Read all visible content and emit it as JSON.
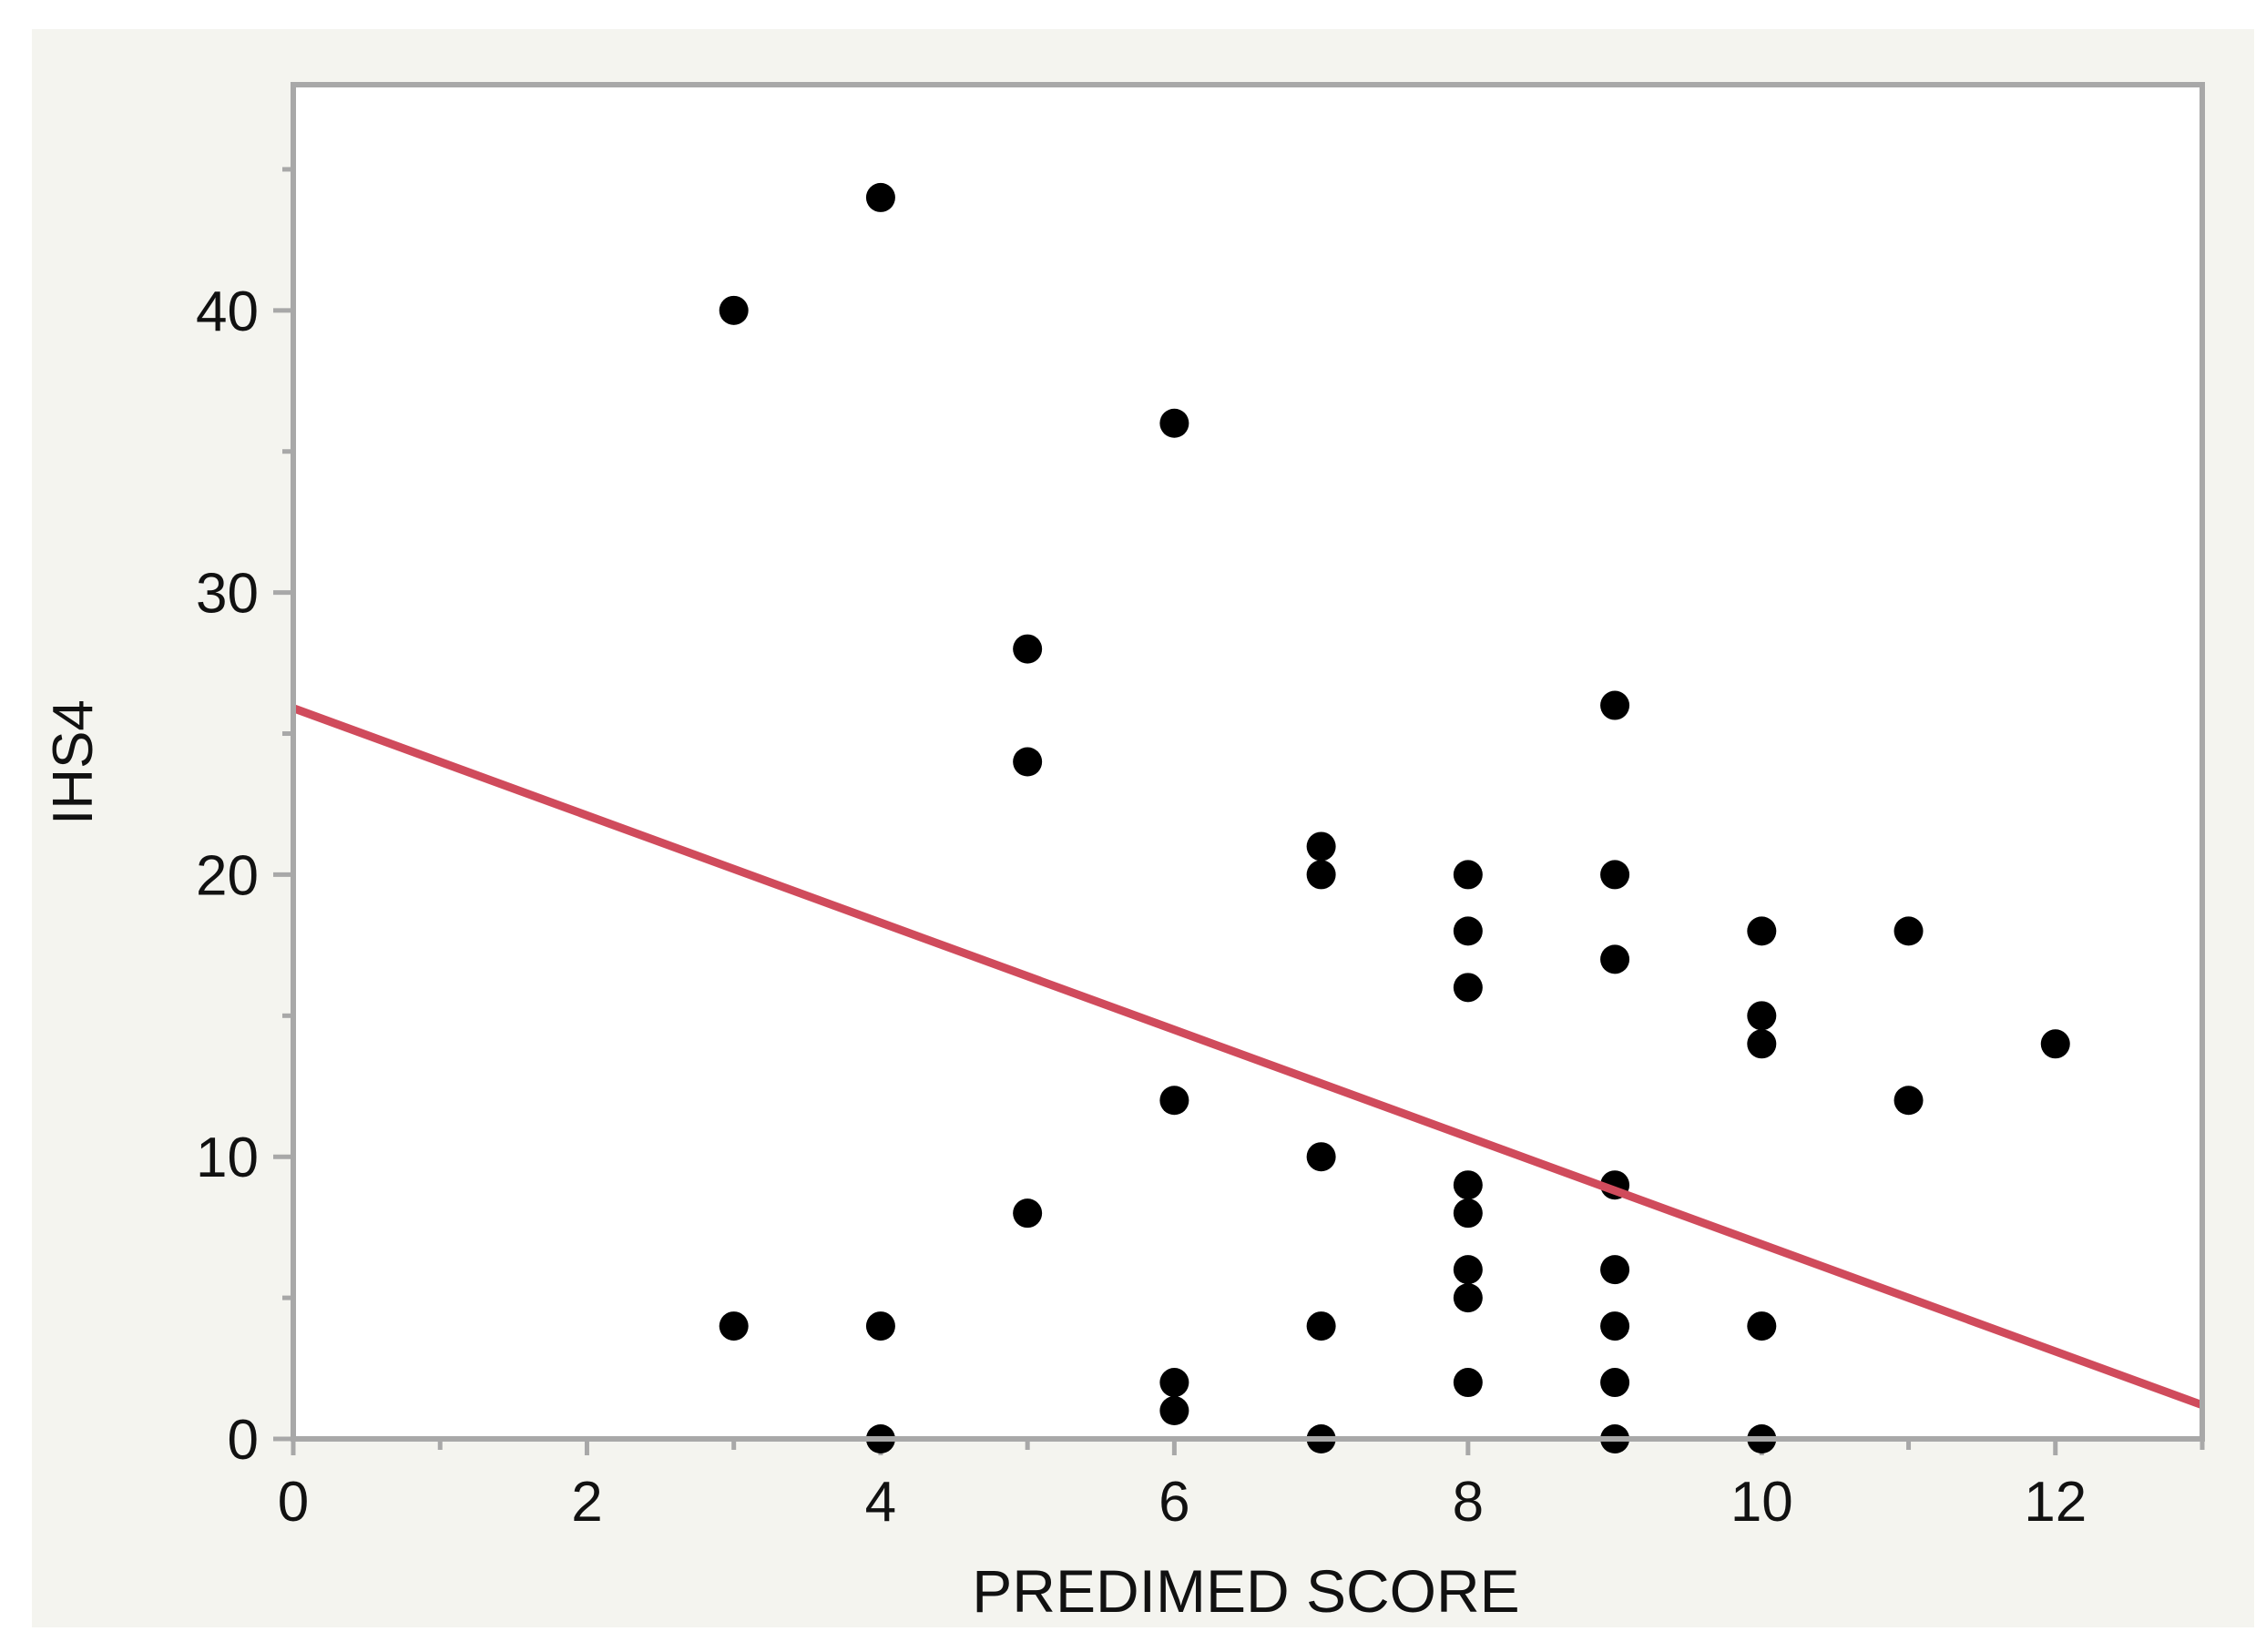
{
  "chart_data": {
    "type": "scatter",
    "xlabel": "PREDIMED SCORE",
    "ylabel": "IHS4",
    "xlim": [
      0,
      13
    ],
    "ylim": [
      0,
      48
    ],
    "x_ticks": [
      0,
      2,
      4,
      6,
      8,
      10,
      12
    ],
    "x_tick_labels": [
      "0",
      "2",
      "4",
      "6",
      "8",
      "10",
      "12"
    ],
    "x_minor_ticks": [
      1,
      3,
      5,
      7,
      9,
      11,
      13
    ],
    "y_ticks": [
      0,
      10,
      20,
      30,
      40
    ],
    "y_tick_labels": [
      "0",
      "10",
      "20",
      "30",
      "40"
    ],
    "y_minor_ticks": [
      5,
      15,
      25,
      35,
      45
    ],
    "grid": false,
    "points": [
      {
        "x": 3,
        "y": 40
      },
      {
        "x": 3,
        "y": 4
      },
      {
        "x": 4,
        "y": 44
      },
      {
        "x": 4,
        "y": 4
      },
      {
        "x": 4,
        "y": 0
      },
      {
        "x": 5,
        "y": 28
      },
      {
        "x": 5,
        "y": 24
      },
      {
        "x": 5,
        "y": 8
      },
      {
        "x": 6,
        "y": 36
      },
      {
        "x": 6,
        "y": 12
      },
      {
        "x": 6,
        "y": 2
      },
      {
        "x": 6,
        "y": 1
      },
      {
        "x": 7,
        "y": 21
      },
      {
        "x": 7,
        "y": 20
      },
      {
        "x": 7,
        "y": 10
      },
      {
        "x": 7,
        "y": 4
      },
      {
        "x": 7,
        "y": 0
      },
      {
        "x": 8,
        "y": 20
      },
      {
        "x": 8,
        "y": 18
      },
      {
        "x": 8,
        "y": 16
      },
      {
        "x": 8,
        "y": 9
      },
      {
        "x": 8,
        "y": 8
      },
      {
        "x": 8,
        "y": 6
      },
      {
        "x": 8,
        "y": 5
      },
      {
        "x": 8,
        "y": 2
      },
      {
        "x": 9,
        "y": 26
      },
      {
        "x": 9,
        "y": 20
      },
      {
        "x": 9,
        "y": 17
      },
      {
        "x": 9,
        "y": 9
      },
      {
        "x": 9,
        "y": 6
      },
      {
        "x": 9,
        "y": 4
      },
      {
        "x": 9,
        "y": 2
      },
      {
        "x": 9,
        "y": 0
      },
      {
        "x": 10,
        "y": 18
      },
      {
        "x": 10,
        "y": 15
      },
      {
        "x": 10,
        "y": 14
      },
      {
        "x": 10,
        "y": 4
      },
      {
        "x": 10,
        "y": 0
      },
      {
        "x": 11,
        "y": 18
      },
      {
        "x": 11,
        "y": 12
      },
      {
        "x": 12,
        "y": 14
      }
    ],
    "fit_line": {
      "x0": 0,
      "y0": 25.9,
      "x1": 13,
      "y1": 1.2
    },
    "colors": {
      "points": "#000000",
      "fit_line": "#d04b5c",
      "frame": "#a8a8a8",
      "outer_background": "#f4f4ef",
      "plot_background": "#ffffff"
    }
  }
}
